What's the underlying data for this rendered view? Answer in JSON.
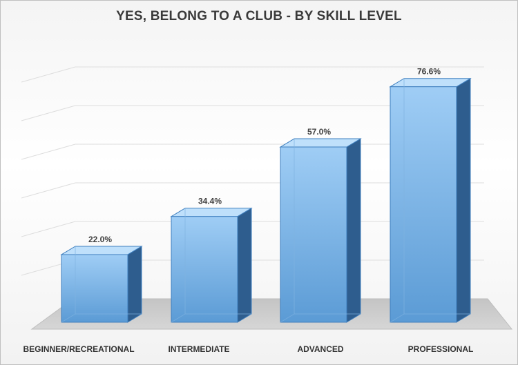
{
  "chart_data": {
    "type": "bar",
    "title": "YES, BELONG TO A CLUB - BY SKILL LEVEL",
    "categories": [
      "BEGINNER/RECREATIONAL",
      "INTERMEDIATE",
      "ADVANCED",
      "PROFESSIONAL"
    ],
    "values": [
      22.0,
      34.4,
      57.0,
      76.6
    ],
    "data_labels": [
      "22.0%",
      "34.4%",
      "57.0%",
      "76.6%"
    ],
    "unit": "%",
    "ylim": [
      0,
      90
    ],
    "grid": true,
    "legend": "none",
    "three_d": true,
    "colors": {
      "bar_front_top": "#9fcdf5",
      "bar_front_bottom": "#5b9bd5",
      "bar_side": "#2e5d8e",
      "bar_top": "#bfe0fb",
      "bar_stroke": "#3f7fbf",
      "floor": "#c9c9c9",
      "gridline": "#dddddd"
    }
  }
}
